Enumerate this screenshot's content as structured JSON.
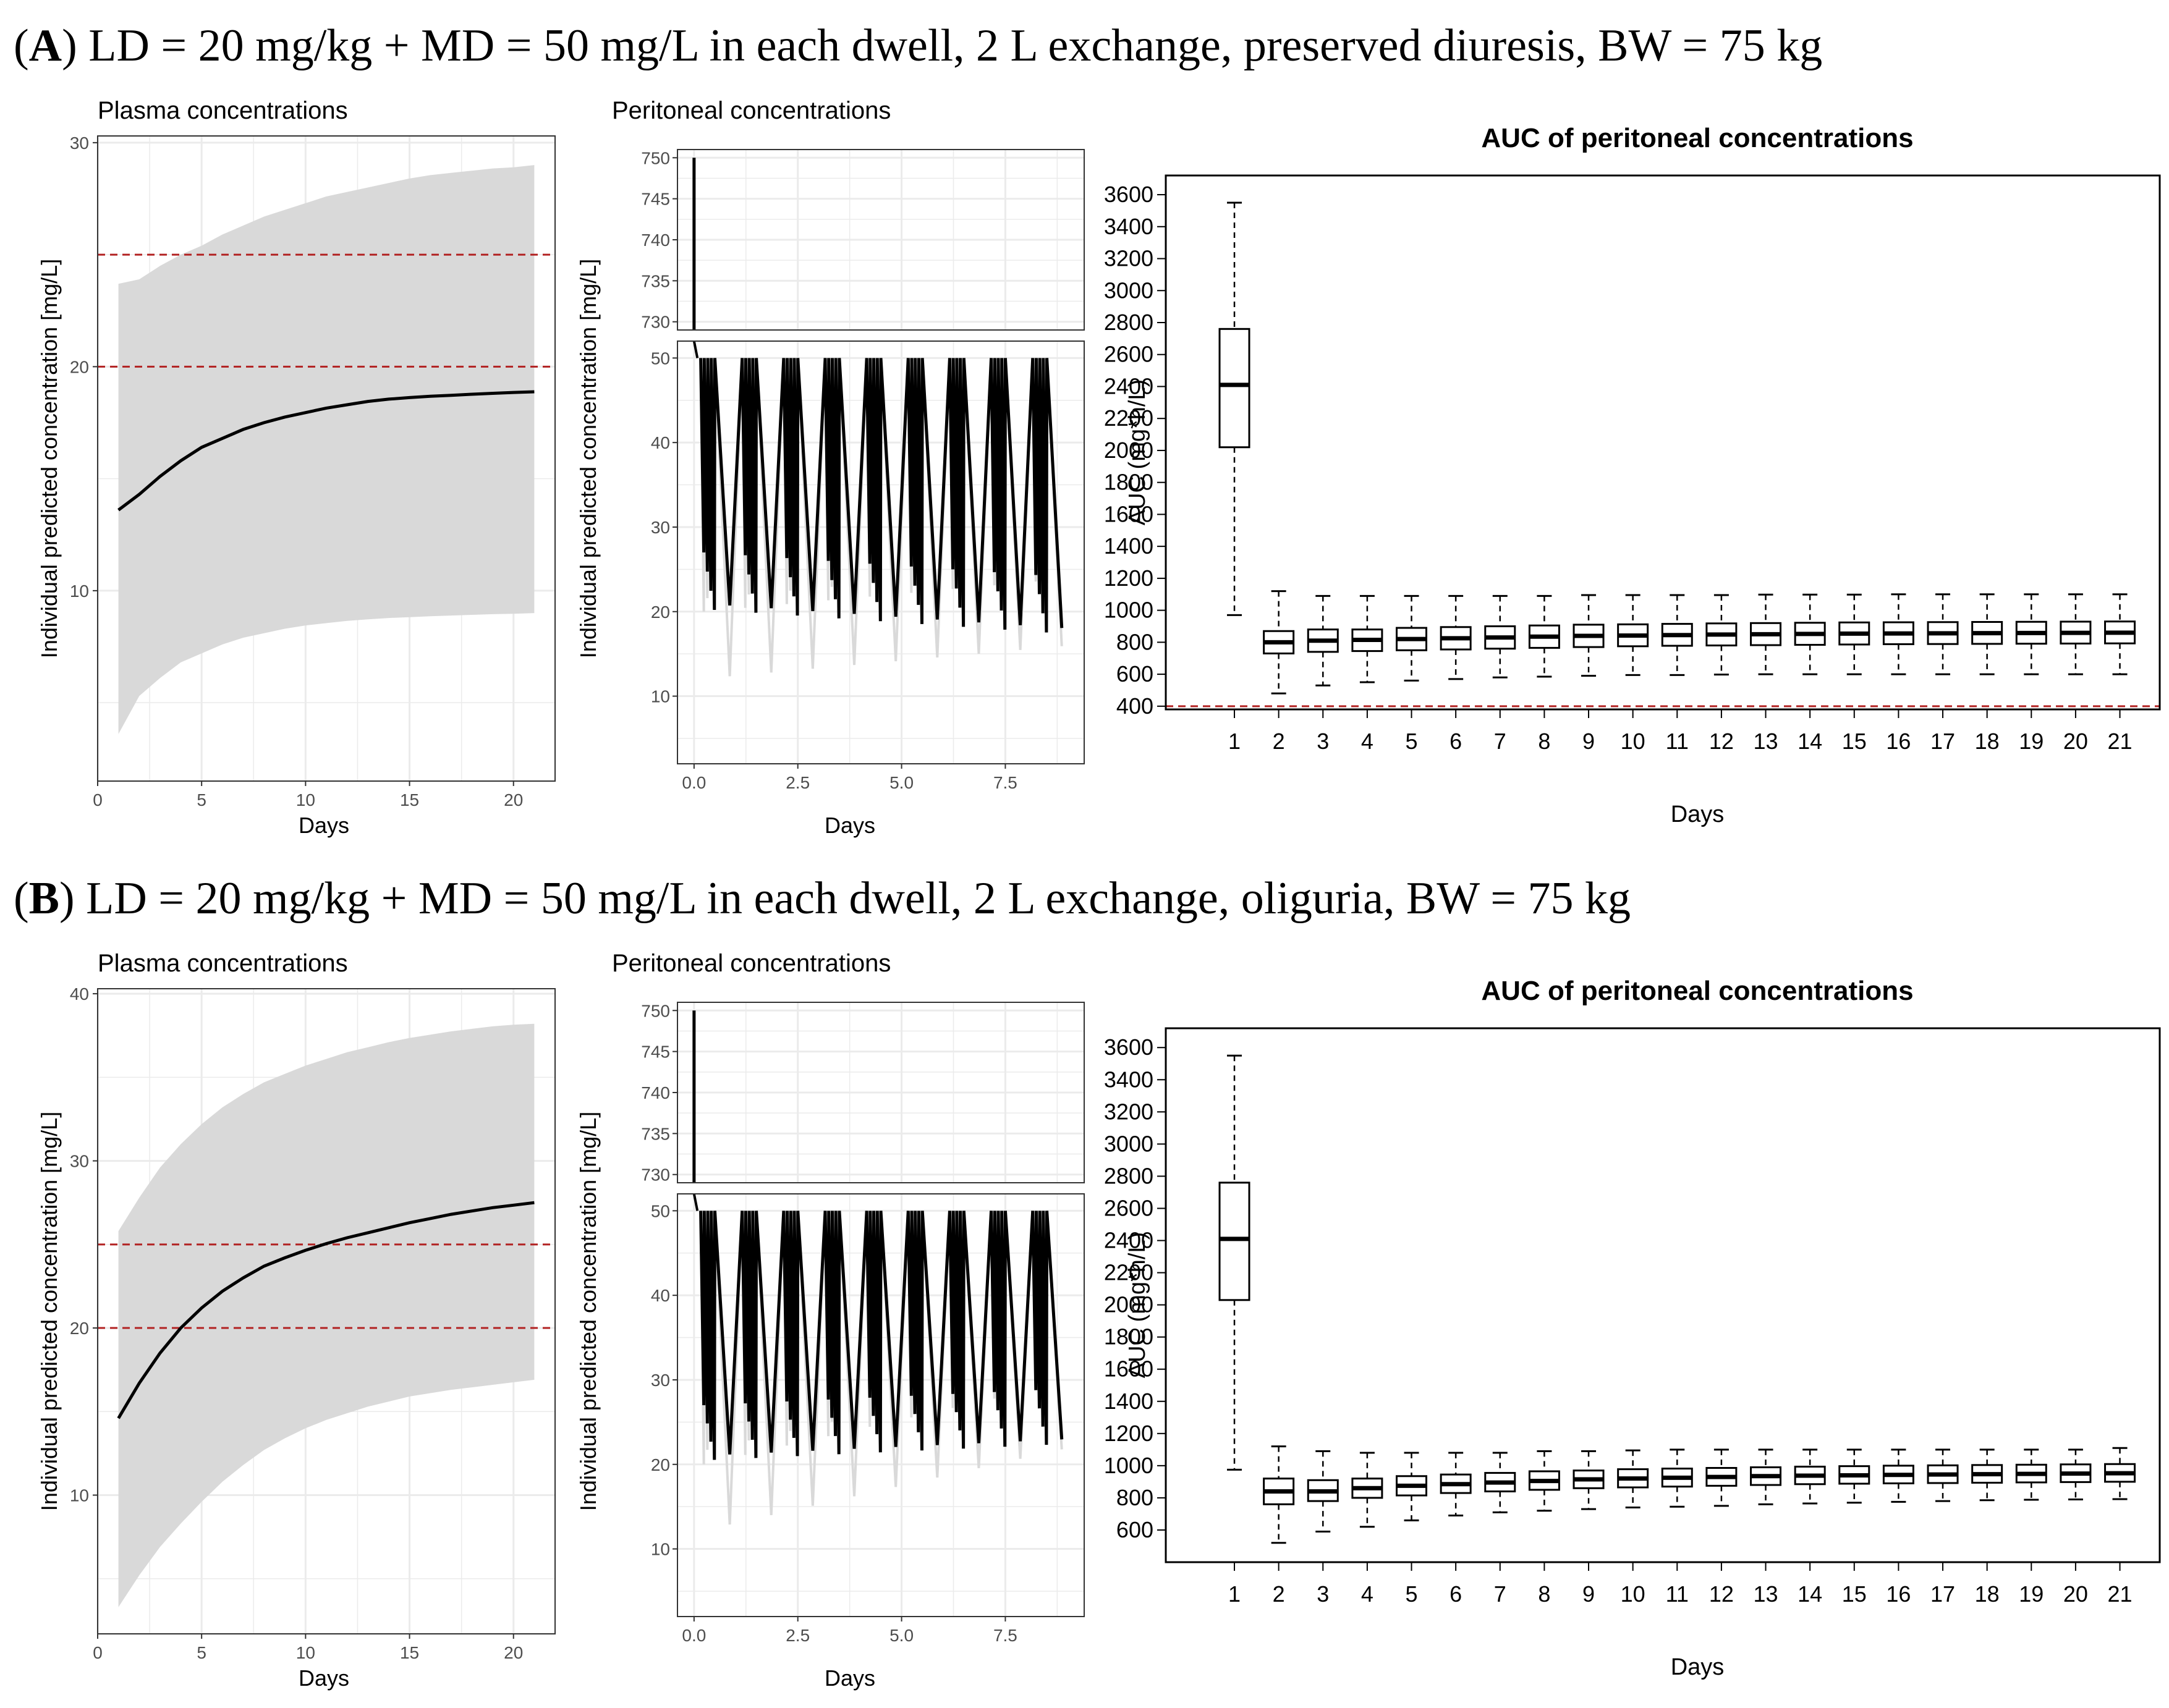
{
  "panels": [
    {
      "letter": "A",
      "caption": ") LD = 20 mg/kg + MD = 50 mg/L in each dwell, 2 L exchange, preserved diuresis, BW = 75 kg"
    },
    {
      "letter": "B",
      "caption": ") LD = 20 mg/kg + MD = 50 mg/L in each dwell, 2 L exchange, oliguria, BW = 75 kg"
    }
  ],
  "colors": {
    "band": "#d9d9d9",
    "line": "#000000",
    "threshold": "#b22222",
    "grid": "#ebebeb"
  },
  "chart_data": [
    {
      "panel": "A",
      "type": "line",
      "title": "Plasma concentrations",
      "xlabel": "Days",
      "ylabel": "Individual predicted concentration [mg/L]",
      "xlim": [
        0,
        22
      ],
      "ylim": [
        1.5,
        30.3
      ],
      "xticks": [
        0,
        5,
        10,
        15,
        20
      ],
      "yticks": [
        10,
        20,
        30
      ],
      "thresholds": [
        20,
        25
      ],
      "x": [
        1,
        2,
        3,
        4,
        5,
        6,
        7,
        8,
        9,
        10,
        11,
        12,
        13,
        14,
        15,
        16,
        17,
        18,
        19,
        20,
        21
      ],
      "median": [
        13.6,
        14.3,
        15.1,
        15.8,
        16.4,
        16.8,
        17.2,
        17.5,
        17.75,
        17.95,
        18.15,
        18.3,
        18.45,
        18.55,
        18.62,
        18.68,
        18.72,
        18.77,
        18.81,
        18.85,
        18.88
      ],
      "lower": [
        3.6,
        5.3,
        6.1,
        6.8,
        7.2,
        7.6,
        7.9,
        8.1,
        8.3,
        8.45,
        8.55,
        8.65,
        8.72,
        8.78,
        8.82,
        8.86,
        8.89,
        8.92,
        8.95,
        8.97,
        9.0
      ],
      "upper": [
        23.7,
        23.9,
        24.5,
        25.0,
        25.4,
        25.9,
        26.3,
        26.7,
        27.0,
        27.3,
        27.6,
        27.8,
        28.0,
        28.2,
        28.4,
        28.55,
        28.65,
        28.75,
        28.85,
        28.9,
        29.0
      ]
    },
    {
      "panel": "A",
      "type": "line",
      "title": "Peritoneal concentrations",
      "xlabel": "Days",
      "ylabel": "Individual predicted concentration [mg/L]",
      "xlim": [
        -0.4,
        9.4
      ],
      "upper_ylim": [
        729,
        751
      ],
      "upper_yticks": [
        730,
        735,
        740,
        745,
        750
      ],
      "lower_ylim": [
        2,
        52
      ],
      "lower_yticks": [
        10,
        20,
        30,
        40,
        50
      ],
      "xticks": [
        "0.0",
        "2.5",
        "5.0",
        "7.5"
      ],
      "loading_peak": 750,
      "dwell_max": 50,
      "dwell_min_median_start": 27,
      "dwell_min_median_end": 24,
      "dwell_min_lower_start": 12,
      "dwell_min_lower_end": 16
    },
    {
      "panel": "A",
      "type": "box",
      "title": "AUC of peritoneal concentrations",
      "xlabel": "Days",
      "ylabel": "AUC (mg*h/L)",
      "ylim": [
        380,
        3720
      ],
      "yticks": [
        400,
        600,
        800,
        1000,
        1200,
        1400,
        1600,
        1800,
        2000,
        2200,
        2400,
        2600,
        2800,
        3000,
        3200,
        3400,
        3600
      ],
      "threshold": 400,
      "categories": [
        "1",
        "2",
        "3",
        "4",
        "5",
        "6",
        "7",
        "8",
        "9",
        "10",
        "11",
        "12",
        "13",
        "14",
        "15",
        "16",
        "17",
        "18",
        "19",
        "20",
        "21"
      ],
      "boxes": [
        {
          "min": 970,
          "q1": 2020,
          "median": 2410,
          "q3": 2760,
          "max": 3550
        },
        {
          "min": 480,
          "q1": 730,
          "median": 800,
          "q3": 870,
          "max": 1120
        },
        {
          "min": 530,
          "q1": 740,
          "median": 810,
          "q3": 880,
          "max": 1090
        },
        {
          "min": 550,
          "q1": 745,
          "median": 815,
          "q3": 880,
          "max": 1090
        },
        {
          "min": 560,
          "q1": 750,
          "median": 820,
          "q3": 890,
          "max": 1090
        },
        {
          "min": 570,
          "q1": 755,
          "median": 825,
          "q3": 895,
          "max": 1090
        },
        {
          "min": 580,
          "q1": 760,
          "median": 830,
          "q3": 900,
          "max": 1090
        },
        {
          "min": 585,
          "q1": 765,
          "median": 835,
          "q3": 905,
          "max": 1090
        },
        {
          "min": 590,
          "q1": 770,
          "median": 840,
          "q3": 910,
          "max": 1095
        },
        {
          "min": 595,
          "q1": 775,
          "median": 842,
          "q3": 912,
          "max": 1095
        },
        {
          "min": 595,
          "q1": 778,
          "median": 845,
          "q3": 915,
          "max": 1095
        },
        {
          "min": 598,
          "q1": 780,
          "median": 848,
          "q3": 918,
          "max": 1095
        },
        {
          "min": 600,
          "q1": 782,
          "median": 850,
          "q3": 920,
          "max": 1098
        },
        {
          "min": 600,
          "q1": 784,
          "median": 852,
          "q3": 922,
          "max": 1098
        },
        {
          "min": 600,
          "q1": 786,
          "median": 854,
          "q3": 924,
          "max": 1098
        },
        {
          "min": 600,
          "q1": 788,
          "median": 855,
          "q3": 925,
          "max": 1100
        },
        {
          "min": 600,
          "q1": 789,
          "median": 856,
          "q3": 926,
          "max": 1100
        },
        {
          "min": 600,
          "q1": 790,
          "median": 857,
          "q3": 927,
          "max": 1100
        },
        {
          "min": 600,
          "q1": 791,
          "median": 858,
          "q3": 928,
          "max": 1100
        },
        {
          "min": 600,
          "q1": 792,
          "median": 859,
          "q3": 929,
          "max": 1100
        },
        {
          "min": 600,
          "q1": 793,
          "median": 860,
          "q3": 930,
          "max": 1100
        }
      ]
    },
    {
      "panel": "B",
      "type": "line",
      "title": "Plasma concentrations",
      "xlabel": "Days",
      "ylabel": "Individual predicted concentration [mg/L]",
      "xlim": [
        0,
        22
      ],
      "ylim": [
        1.7,
        40.3
      ],
      "xticks": [
        0,
        5,
        10,
        15,
        20
      ],
      "yticks": [
        10,
        20,
        30,
        40
      ],
      "thresholds": [
        20,
        25
      ],
      "x": [
        1,
        2,
        3,
        4,
        5,
        6,
        7,
        8,
        9,
        10,
        11,
        12,
        13,
        14,
        15,
        16,
        17,
        18,
        19,
        20,
        21
      ],
      "median": [
        14.6,
        16.7,
        18.5,
        20.0,
        21.2,
        22.2,
        23.0,
        23.7,
        24.2,
        24.65,
        25.05,
        25.4,
        25.7,
        26.0,
        26.3,
        26.55,
        26.8,
        27.0,
        27.2,
        27.35,
        27.5
      ],
      "lower": [
        3.3,
        5.2,
        6.9,
        8.3,
        9.6,
        10.8,
        11.8,
        12.7,
        13.4,
        14.0,
        14.5,
        14.9,
        15.3,
        15.6,
        15.9,
        16.1,
        16.3,
        16.45,
        16.6,
        16.75,
        16.9
      ],
      "upper": [
        25.8,
        27.8,
        29.6,
        31.0,
        32.2,
        33.2,
        34.0,
        34.7,
        35.2,
        35.7,
        36.1,
        36.5,
        36.8,
        37.1,
        37.35,
        37.55,
        37.75,
        37.9,
        38.05,
        38.15,
        38.2
      ]
    },
    {
      "panel": "B",
      "type": "line",
      "title": "Peritoneal concentrations",
      "xlabel": "Days",
      "ylabel": "Individual predicted concentration [mg/L]",
      "xlim": [
        -0.4,
        9.4
      ],
      "upper_ylim": [
        729,
        751
      ],
      "upper_yticks": [
        730,
        735,
        740,
        745,
        750
      ],
      "lower_ylim": [
        2,
        52
      ],
      "lower_yticks": [
        10,
        20,
        30,
        40,
        50
      ],
      "xticks": [
        "0.0",
        "2.5",
        "5.0",
        "7.5"
      ],
      "loading_peak": 750,
      "dwell_max": 50,
      "dwell_min_median_start": 27,
      "dwell_min_median_end": 29,
      "dwell_min_lower_start": 12,
      "dwell_min_lower_end": 22
    },
    {
      "panel": "B",
      "type": "box",
      "title": "AUC of peritoneal concentrations",
      "xlabel": "Days",
      "ylabel": "AUC (mg*h/L)",
      "ylim": [
        400,
        3720
      ],
      "yticks": [
        600,
        800,
        1000,
        1200,
        1400,
        1600,
        1800,
        2000,
        2200,
        2400,
        2600,
        2800,
        3000,
        3200,
        3400,
        3600
      ],
      "threshold": 400,
      "categories": [
        "1",
        "2",
        "3",
        "4",
        "5",
        "6",
        "7",
        "8",
        "9",
        "10",
        "11",
        "12",
        "13",
        "14",
        "15",
        "16",
        "17",
        "18",
        "19",
        "20",
        "21"
      ],
      "boxes": [
        {
          "min": 975,
          "q1": 2030,
          "median": 2410,
          "q3": 2760,
          "max": 3550
        },
        {
          "min": 520,
          "q1": 760,
          "median": 840,
          "q3": 920,
          "max": 1120
        },
        {
          "min": 590,
          "q1": 780,
          "median": 840,
          "q3": 910,
          "max": 1090
        },
        {
          "min": 620,
          "q1": 800,
          "median": 860,
          "q3": 920,
          "max": 1080
        },
        {
          "min": 660,
          "q1": 815,
          "median": 875,
          "q3": 935,
          "max": 1080
        },
        {
          "min": 690,
          "q1": 830,
          "median": 885,
          "q3": 945,
          "max": 1080
        },
        {
          "min": 710,
          "q1": 840,
          "median": 895,
          "q3": 955,
          "max": 1080
        },
        {
          "min": 720,
          "q1": 850,
          "median": 905,
          "q3": 965,
          "max": 1090
        },
        {
          "min": 730,
          "q1": 860,
          "median": 915,
          "q3": 970,
          "max": 1090
        },
        {
          "min": 740,
          "q1": 865,
          "median": 920,
          "q3": 978,
          "max": 1095
        },
        {
          "min": 745,
          "q1": 870,
          "median": 925,
          "q3": 982,
          "max": 1100
        },
        {
          "min": 750,
          "q1": 875,
          "median": 930,
          "q3": 986,
          "max": 1100
        },
        {
          "min": 760,
          "q1": 880,
          "median": 935,
          "q3": 990,
          "max": 1100
        },
        {
          "min": 765,
          "q1": 885,
          "median": 938,
          "q3": 994,
          "max": 1100
        },
        {
          "min": 770,
          "q1": 888,
          "median": 940,
          "q3": 997,
          "max": 1100
        },
        {
          "min": 775,
          "q1": 890,
          "median": 943,
          "q3": 1000,
          "max": 1100
        },
        {
          "min": 780,
          "q1": 892,
          "median": 945,
          "q3": 1002,
          "max": 1100
        },
        {
          "min": 785,
          "q1": 894,
          "median": 947,
          "q3": 1004,
          "max": 1100
        },
        {
          "min": 788,
          "q1": 896,
          "median": 949,
          "q3": 1006,
          "max": 1100
        },
        {
          "min": 790,
          "q1": 898,
          "median": 951,
          "q3": 1008,
          "max": 1100
        },
        {
          "min": 792,
          "q1": 900,
          "median": 953,
          "q3": 1010,
          "max": 1110
        }
      ]
    }
  ]
}
